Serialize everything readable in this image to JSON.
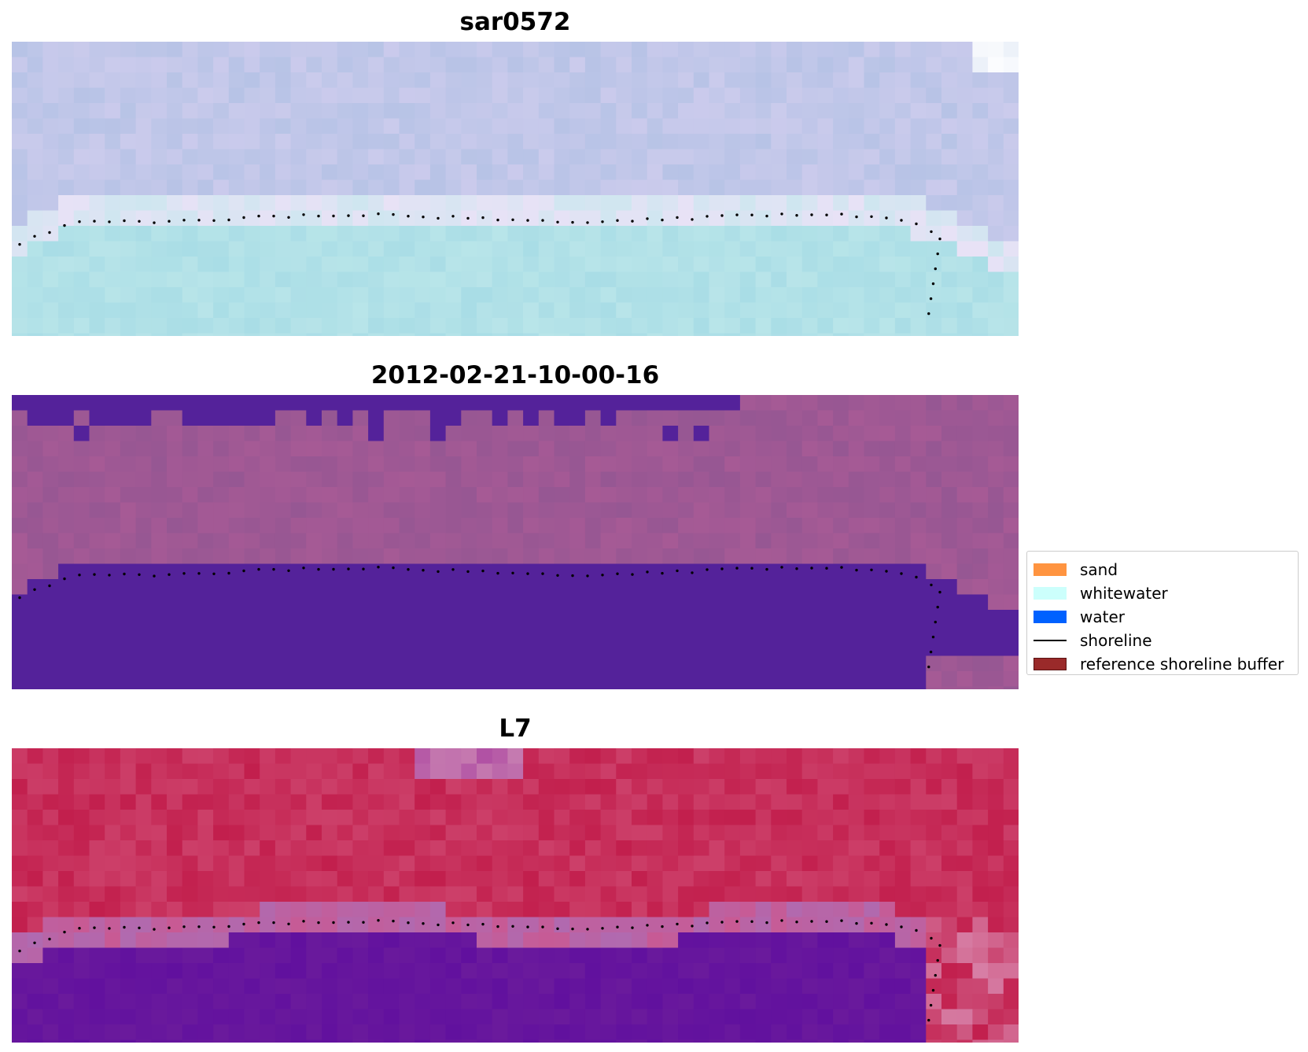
{
  "panels": [
    {
      "title": "sar0572",
      "image": "pale-blue-lavender-pixels-over-cyan-shore"
    },
    {
      "title": "2012-02-21-10-00-16",
      "image": "purple-classified-pixels-magenta-background"
    },
    {
      "title": "L7",
      "image": "red-crimson-pixels-over-violet-water"
    }
  ],
  "legend": {
    "items": [
      {
        "label": "sand",
        "color": "#ff9440",
        "kind": "patch"
      },
      {
        "label": "whitewater",
        "color": "#ccfffc",
        "kind": "patch"
      },
      {
        "label": "water",
        "color": "#0061ff",
        "kind": "patch"
      },
      {
        "label": "shoreline",
        "color": "#000000",
        "kind": "line"
      },
      {
        "label": "reference shoreline buffer",
        "color": "#9a2a2a",
        "kind": "patch"
      }
    ]
  },
  "colors": {
    "water_class": "#54229a",
    "panel1_sky": "#b7c3e6",
    "panel1_sea": "#a9dde6",
    "panel2_land": "#a65a95",
    "panel3_land": "#c21f4d",
    "panel3_water": "#6a1a9c",
    "shoreline_dots": "#000000"
  }
}
